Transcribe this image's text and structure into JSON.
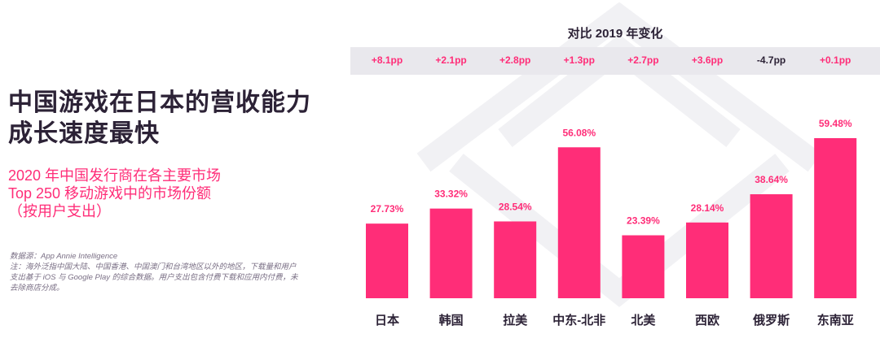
{
  "title": "中国游戏在日本的营收能力成长速度最快",
  "subtitle": [
    "2020 年中国发行商在各主要市场",
    "Top 250 移动游戏中的市场份额",
    "（按用户支出）"
  ],
  "notes": [
    "数据源：App Annie Intelligence",
    "注：海外泛指中国大陆、中国香港、中国澳门和台湾地区以外的地区，下载量和用户支出基于 iOS 与 Google Play 的综合数据。用户支出包含付费下载和应用内付费，未去除商店分成。"
  ],
  "change_title": "对比 2019 年变化",
  "changes": [
    "+8.1pp",
    "+2.1pp",
    "+2.8pp",
    "+1.3pp",
    "+2.7pp",
    "+3.6pp",
    "-4.7pp",
    "+0.1pp"
  ],
  "colors": {
    "bar": "#ff2d78",
    "positive": "#ff2d78",
    "negative": "#2c2236",
    "text": "#2c2236"
  },
  "chart_data": {
    "type": "bar",
    "categories": [
      "日本",
      "韩国",
      "拉美",
      "中东-北非",
      "北美",
      "西欧",
      "俄罗斯",
      "东南亚"
    ],
    "values": [
      27.73,
      33.32,
      28.54,
      56.08,
      23.39,
      28.14,
      38.64,
      59.48
    ],
    "data_labels": [
      "27.73%",
      "33.32%",
      "28.54%",
      "56.08%",
      "23.39%",
      "28.14%",
      "38.64%",
      "59.48%"
    ],
    "ylim": [
      0,
      60
    ],
    "grid": false
  }
}
